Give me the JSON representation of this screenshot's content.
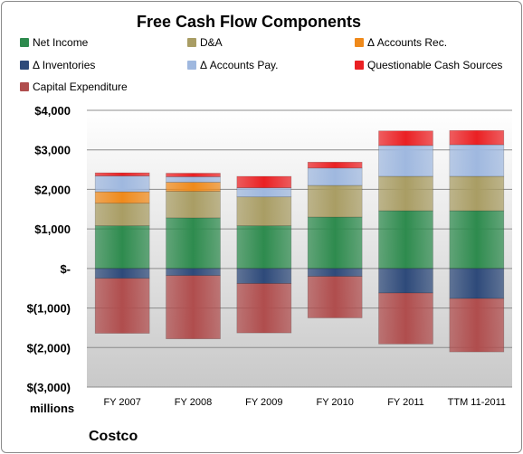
{
  "chart_data": {
    "type": "bar",
    "stacked": true,
    "title": "Free Cash Flow Components",
    "ylabel": "millions",
    "company": "Costco",
    "categories": [
      "FY 2007",
      "FY 2008",
      "FY 2009",
      "FY 2010",
      "FY 2011",
      "TTM 11-2011"
    ],
    "ylim": [
      -3000,
      4000
    ],
    "yticks": [
      {
        "value": 4000,
        "label": "$4,000"
      },
      {
        "value": 3000,
        "label": "$3,000"
      },
      {
        "value": 2000,
        "label": "$2,000"
      },
      {
        "value": 1000,
        "label": "$1,000"
      },
      {
        "value": 0,
        "label": "$-"
      },
      {
        "value": -1000,
        "label": "$(1,000)"
      },
      {
        "value": -2000,
        "label": "$(2,000)"
      },
      {
        "value": -3000,
        "label": "$(3,000)"
      }
    ],
    "grid": true,
    "legend_position": "top",
    "series": [
      {
        "name": "Net Income",
        "color": "#2e8b4e",
        "values": [
          1080,
          1280,
          1080,
          1300,
          1460,
          1460
        ]
      },
      {
        "name": "D&A",
        "color": "#a99d64",
        "values": [
          570,
          670,
          730,
          800,
          870,
          870
        ]
      },
      {
        "name": "Δ Accounts Rec.",
        "color": "#ef8a1b",
        "values": [
          290,
          230,
          0,
          0,
          0,
          0
        ]
      },
      {
        "name": "Δ Inventories",
        "color": "#2e4a7a",
        "values": [
          -250,
          -180,
          -380,
          -200,
          -620,
          -760
        ]
      },
      {
        "name": "Δ Accounts Pay.",
        "color": "#9fb8df",
        "values": [
          400,
          140,
          230,
          440,
          780,
          800
        ]
      },
      {
        "name": "Questionable Cash Sources",
        "color": "#ea2023",
        "values": [
          80,
          90,
          290,
          150,
          370,
          360
        ]
      },
      {
        "name": "Capital Expenditure",
        "color": "#b04d4d",
        "values": [
          -1390,
          -1600,
          -1250,
          -1050,
          -1290,
          -1350
        ]
      }
    ]
  }
}
